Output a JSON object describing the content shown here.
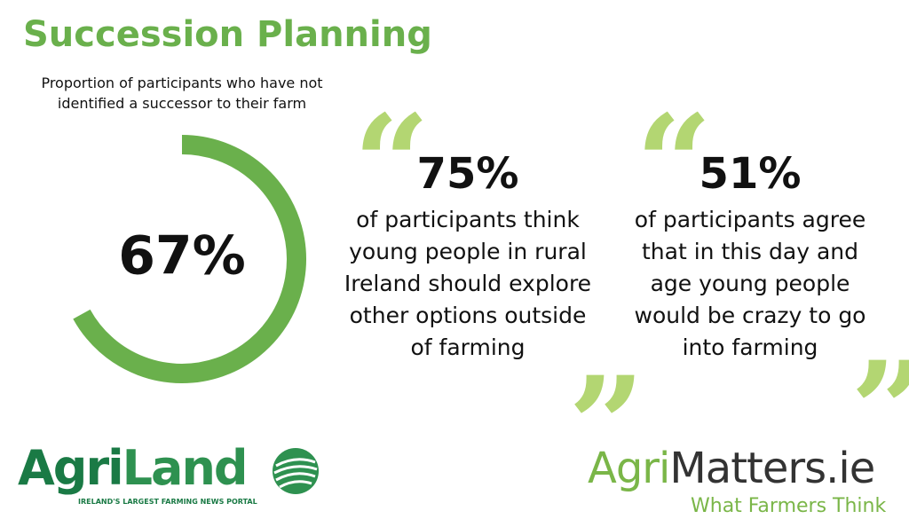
{
  "title": "Succession Planning",
  "chart_data": {
    "type": "donut",
    "title": "Proportion of participants who have not identified a successor to their farm",
    "values": [
      67
    ],
    "value_labels": [
      "67%"
    ],
    "color": "#6ab04c"
  },
  "stats": [
    {
      "figure": "75%",
      "text": "of participants think young people in rural Ireland should explore other options outside of farming"
    },
    {
      "figure": "51%",
      "text": "of participants agree that in this day and age young people would be crazy to go into farming"
    }
  ],
  "logos": {
    "left": {
      "part1": "Agri",
      "part2": "Land",
      "tagline": "IRELAND'S LARGEST FARMING NEWS PORTAL"
    },
    "right": {
      "part1": "Agri",
      "part2": "Matters.ie",
      "tagline": "What Farmers Think"
    }
  }
}
